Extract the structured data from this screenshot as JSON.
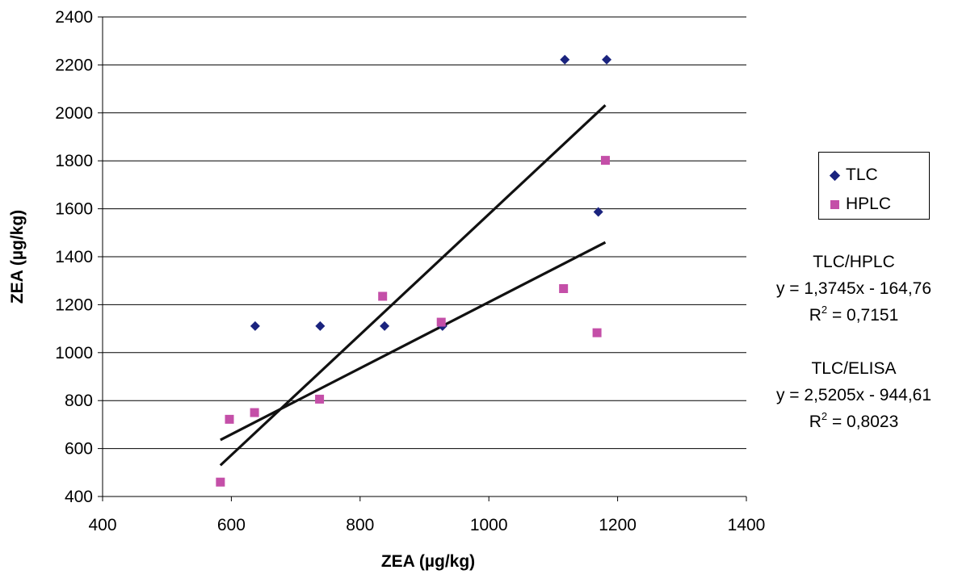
{
  "chart_data": {
    "type": "scatter",
    "xlabel": "ZEA (µg/kg)",
    "ylabel": "ZEA (µg/kg)",
    "xlim": [
      400,
      1400
    ],
    "ylim": [
      400,
      2400
    ],
    "xticks": [
      400,
      600,
      800,
      1000,
      1200,
      1400
    ],
    "yticks": [
      400,
      600,
      800,
      1000,
      1200,
      1400,
      1600,
      1800,
      2000,
      2200,
      2400
    ],
    "grid": "horizontal",
    "legend_position": "right",
    "series": [
      {
        "name": "TLC",
        "marker": "diamond",
        "color": "#1a237e",
        "points": [
          [
            637,
            1111
          ],
          [
            738,
            1111
          ],
          [
            838,
            1111
          ],
          [
            928,
            1111
          ],
          [
            1118,
            2222
          ],
          [
            1183,
            2222
          ],
          [
            1170,
            1587
          ]
        ]
      },
      {
        "name": "HPLC",
        "marker": "square",
        "color": "#c44fa8",
        "points": [
          [
            583,
            460
          ],
          [
            597,
            722
          ],
          [
            636,
            750
          ],
          [
            737,
            806
          ],
          [
            835,
            1235
          ],
          [
            926,
            1127
          ],
          [
            1116,
            1267
          ],
          [
            1168,
            1083
          ],
          [
            1181,
            1802
          ]
        ]
      }
    ],
    "trendlines": [
      {
        "label": "TLC/HPLC",
        "from": [
          583,
          636
        ],
        "to": [
          1181,
          1460
        ]
      },
      {
        "label": "TLC/ELISA",
        "from": [
          583,
          530
        ],
        "to": [
          1181,
          2032
        ]
      }
    ],
    "annotations": [
      {
        "title": "TLC/HPLC",
        "equation": "y = 1,3745x - 164,76",
        "r2_label": "R",
        "r2_sup": "2",
        "r2_value": " = 0,7151"
      },
      {
        "title": "TLC/ELISA",
        "equation": "y = 2,5205x - 944,61",
        "r2_label": "R",
        "r2_sup": "2",
        "r2_value": " = 0,8023"
      }
    ]
  }
}
